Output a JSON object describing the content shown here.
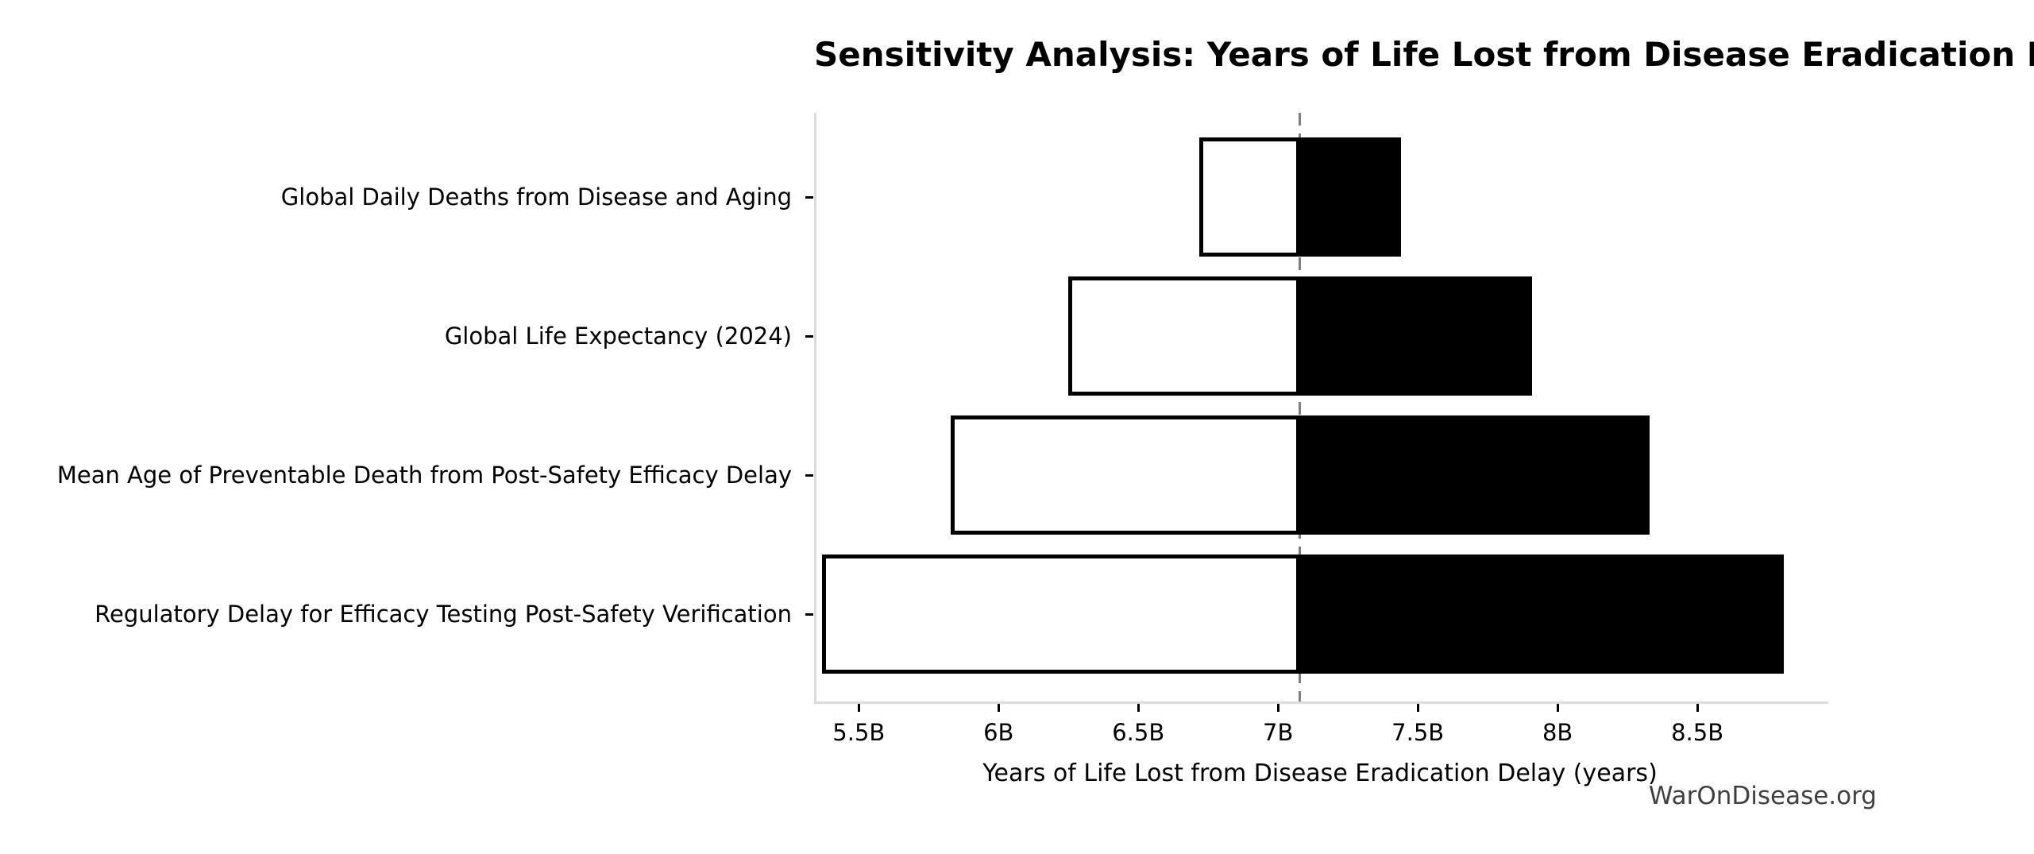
{
  "chart_data": {
    "type": "bar",
    "subtype": "tornado-sensitivity-horizontal",
    "title": "Sensitivity Analysis: Years of Life Lost from Disease Eradication Delay",
    "xlabel": "Years of Life Lost from Disease Eradication Delay (years)",
    "ylabel": "",
    "x_unit": "B = billions of years",
    "xlim": [
      5.34,
      8.96
    ],
    "baseline": 7.07,
    "x_ticks": [
      5.5,
      6.0,
      6.5,
      7.0,
      7.5,
      8.0,
      8.5
    ],
    "x_tick_labels": [
      "5.5B",
      "6B",
      "6.5B",
      "7B",
      "7.5B",
      "8B",
      "8.5B"
    ],
    "categories": [
      "Global Daily Deaths from Disease and Aging",
      "Global Life Expectancy (2024)",
      "Mean Age of Preventable Death from Post-Safety Efficacy Delay",
      "Regulatory Delay for Efficacy Testing Post-Safety Verification"
    ],
    "series": [
      {
        "name": "low",
        "values": [
          6.71,
          6.24,
          5.82,
          5.36
        ]
      },
      {
        "name": "high",
        "values": [
          7.43,
          7.9,
          8.32,
          8.8
        ]
      }
    ],
    "legend": "none",
    "grid": false,
    "colors": {
      "low_bar_fill": "#ffffff",
      "low_bar_edge": "#000000",
      "high_bar_fill": "#000000",
      "baseline_line": "#7f7f7f",
      "spine": "#dcdcdc",
      "text": "#000000",
      "watermark": "#404040"
    }
  },
  "watermark": "WarOnDisease.org"
}
